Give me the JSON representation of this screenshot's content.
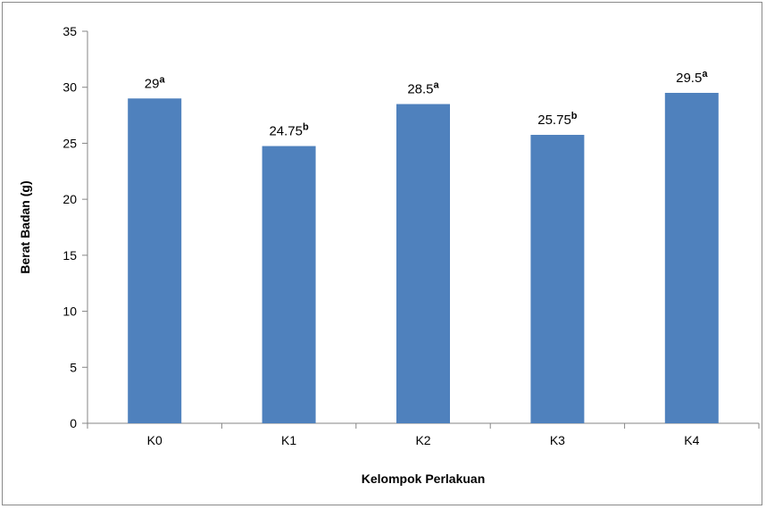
{
  "chart_data": {
    "type": "bar",
    "categories": [
      "K0",
      "K1",
      "K2",
      "K3",
      "K4"
    ],
    "values": [
      29,
      24.75,
      28.5,
      25.75,
      29.5
    ],
    "data_labels": [
      "29",
      "24.75",
      "28.5",
      "25.75",
      "29.5"
    ],
    "significance_letters": [
      "a",
      "b",
      "a",
      "b",
      "a"
    ],
    "ylabel": "Berat Badan (g)",
    "xlabel": "Kelompok Perlakuan",
    "ylim": [
      0,
      35
    ],
    "yticks": [
      0,
      5,
      10,
      15,
      20,
      25,
      30,
      35
    ],
    "grid": false,
    "legend": "none",
    "bar_color": "#4f81bd"
  }
}
